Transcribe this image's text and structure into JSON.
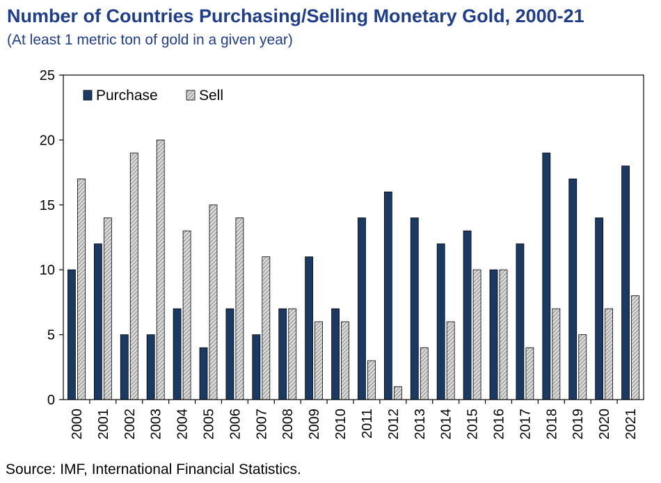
{
  "header": {
    "title": "Number of Countries Purchasing/Selling Monetary Gold, 2000-21",
    "subtitle": "(At least 1 metric ton of gold in a given year)"
  },
  "footer": {
    "source": "Source: IMF, International Financial Statistics."
  },
  "colors": {
    "purchase": "#1b3a63",
    "sell_fill": "#d9d9d9",
    "sell_hatch": "#555555",
    "title": "#1f3d8a"
  },
  "chart_data": {
    "type": "bar",
    "title": "Number of Countries Purchasing/Selling Monetary Gold, 2000-21",
    "subtitle": "(At least 1 metric ton of gold in a given year)",
    "categories": [
      "2000",
      "2001",
      "2002",
      "2003",
      "2004",
      "2005",
      "2006",
      "2007",
      "2008",
      "2009",
      "2010",
      "2011",
      "2012",
      "2013",
      "2014",
      "2015",
      "2016",
      "2017",
      "2018",
      "2019",
      "2020",
      "2021"
    ],
    "series": [
      {
        "name": "Purchase",
        "values": [
          10,
          12,
          5,
          5,
          7,
          4,
          7,
          5,
          7,
          11,
          7,
          14,
          16,
          14,
          12,
          13,
          10,
          12,
          19,
          17,
          14,
          18
        ]
      },
      {
        "name": "Sell",
        "values": [
          17,
          14,
          19,
          20,
          13,
          15,
          14,
          11,
          7,
          6,
          6,
          3,
          1,
          4,
          6,
          10,
          10,
          4,
          7,
          5,
          7,
          8
        ]
      }
    ],
    "ylim": [
      0,
      25
    ],
    "yticks": [
      0,
      5,
      10,
      15,
      20,
      25
    ],
    "legend": {
      "position": "top-left",
      "entries": [
        "Purchase",
        "Sell"
      ]
    },
    "grid": false,
    "xlabel": "",
    "ylabel": ""
  }
}
